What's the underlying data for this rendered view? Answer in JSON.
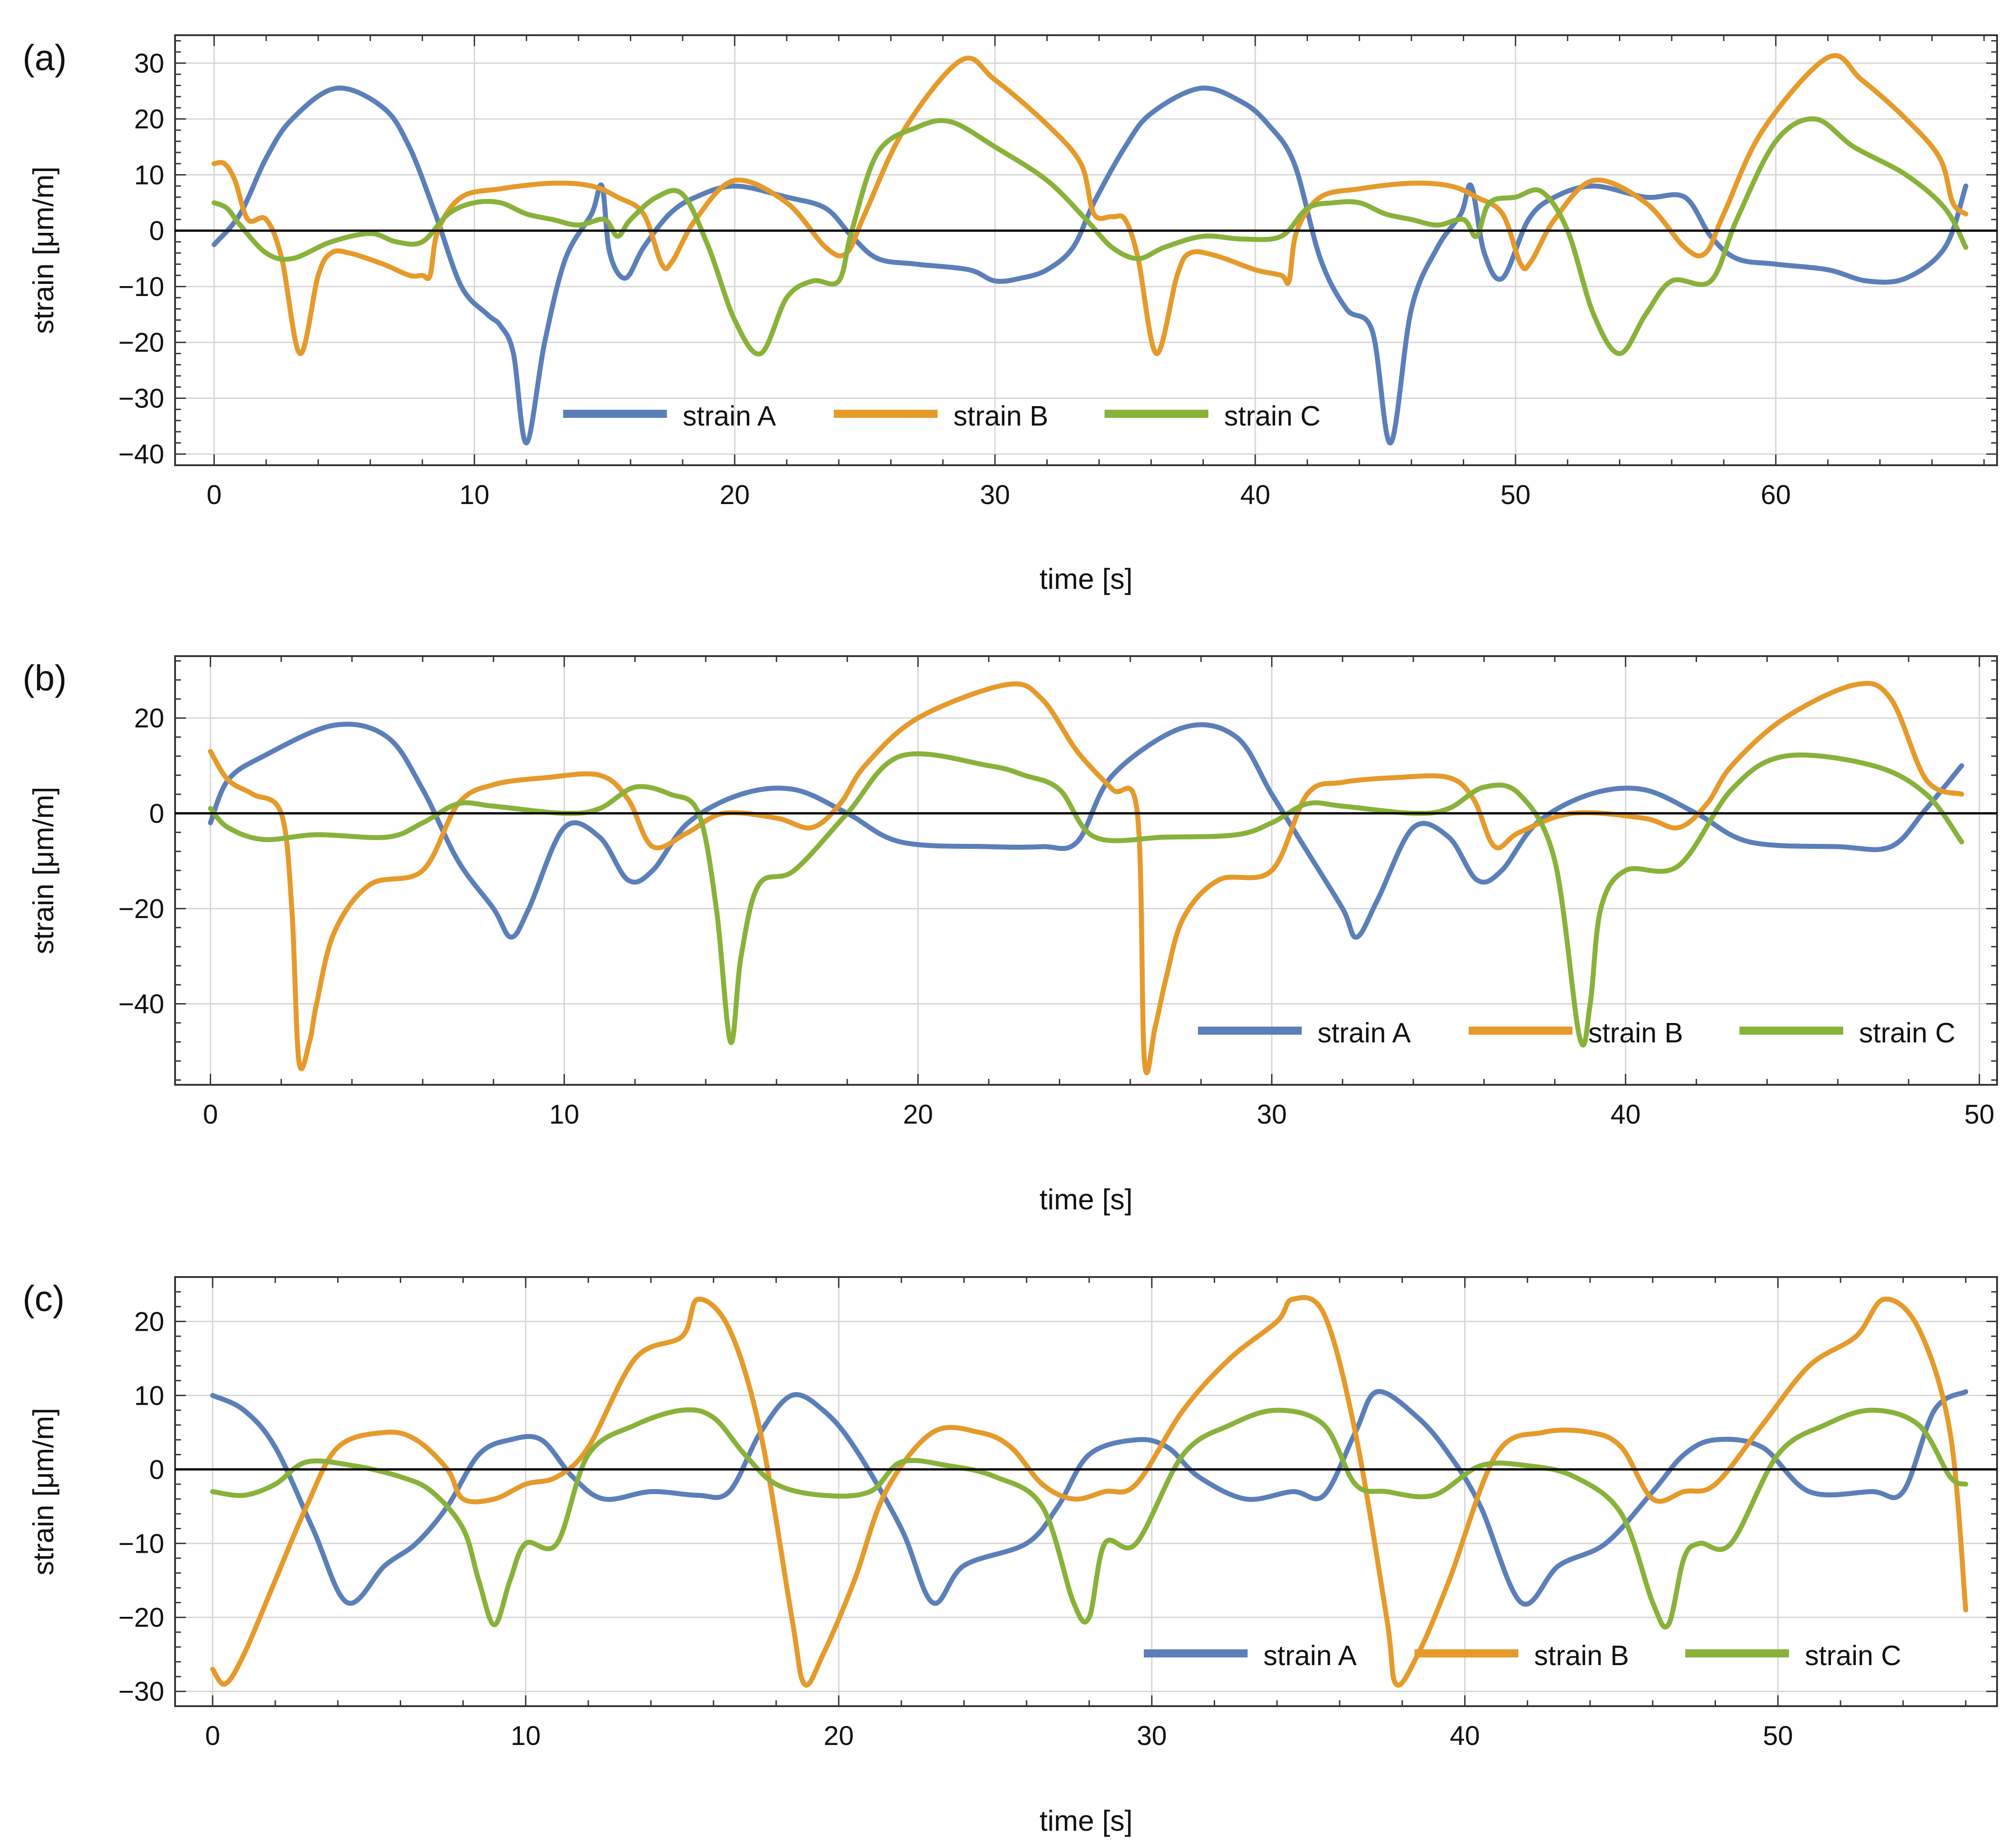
{
  "figure": {
    "series_colors": {
      "strain A": "#5b7fb9",
      "strain B": "#e59a2a",
      "strain C": "#88b23a"
    }
  },
  "chart_data": [
    {
      "panel": "(a)",
      "type": "line",
      "xlabel": "time [s]",
      "ylabel": "strain [μm/m]",
      "xlim": [
        -1.5,
        68.5
      ],
      "ylim": [
        -42,
        35
      ],
      "xticks": [
        0,
        10,
        20,
        30,
        40,
        50,
        60
      ],
      "yticks": [
        -40,
        -30,
        -20,
        -10,
        0,
        10,
        20,
        30
      ],
      "grid": true,
      "legend": [
        "strain A",
        "strain B",
        "strain C"
      ],
      "legend_position": "bottom-center",
      "series": [
        {
          "name": "strain A",
          "color": "#5b7fb9",
          "x": [
            0,
            1,
            2,
            3,
            4.7,
            6.5,
            7.5,
            8.5,
            9.5,
            10.5,
            11,
            11.5,
            12,
            12.7,
            13.5,
            14.5,
            14.9,
            15.2,
            15.8,
            16.5,
            17.5,
            18.5,
            20,
            22,
            23.5,
            24.5,
            25.5,
            27,
            29,
            30,
            31,
            32,
            33,
            33.8,
            35,
            36,
            37.9,
            39.5,
            40.5,
            41.5,
            42.5,
            43.5,
            44.5,
            45.2,
            46,
            47,
            47.9,
            48.3,
            48.8,
            49.5,
            50.5,
            51.5,
            53,
            55,
            56.5,
            57.5,
            58.5,
            60,
            62,
            63.5,
            65,
            66.5,
            67.3
          ],
          "values": [
            -2.5,
            3,
            13,
            20,
            25.5,
            22,
            15,
            3,
            -10,
            -15,
            -17,
            -22,
            -38,
            -20,
            -5,
            3,
            8,
            -4,
            -8.5,
            -3,
            3,
            6,
            8,
            6,
            4,
            -1,
            -5,
            -6,
            -7,
            -9,
            -8.5,
            -7,
            -3,
            5,
            15,
            21,
            25.5,
            23,
            19,
            12,
            -5,
            -14,
            -18,
            -38,
            -14,
            -3,
            3,
            8,
            -4,
            -8.5,
            2,
            6,
            8,
            6,
            6,
            -1,
            -5,
            -6,
            -7,
            -9,
            -8.5,
            -3,
            8
          ]
        },
        {
          "name": "strain B",
          "color": "#e59a2a",
          "x": [
            0,
            0.4,
            0.8,
            1.3,
            2,
            2.6,
            3.3,
            4,
            4.5,
            5.2,
            6.5,
            7.5,
            8,
            8.3,
            8.6,
            9.5,
            11,
            13,
            14.5,
            15.5,
            16.5,
            17.2,
            17.6,
            18.5,
            20,
            22,
            23.5,
            24.3,
            25,
            26.5,
            28.7,
            30,
            32,
            33.3,
            33.8,
            34.5,
            35,
            35.5,
            36.2,
            37,
            37.5,
            38.5,
            40,
            41,
            41.3,
            41.6,
            42.5,
            44,
            46,
            47.5,
            48.5,
            49.5,
            50.2,
            50.6,
            51.5,
            53,
            55,
            56.5,
            57.3,
            58,
            59.5,
            62,
            63.3,
            65,
            66.3,
            66.8,
            67.3
          ],
          "values": [
            12,
            12,
            9,
            2,
            2,
            -5,
            -22,
            -8,
            -4,
            -4,
            -6,
            -8,
            -8,
            -8,
            0,
            6,
            7.5,
            8.5,
            8,
            6,
            3,
            -6,
            -5.5,
            2,
            9,
            5,
            -3,
            -4,
            3,
            18,
            30.5,
            27,
            19,
            12,
            3,
            2.5,
            2,
            -5,
            -22,
            -8,
            -4,
            -4.5,
            -7,
            -8,
            -9,
            0,
            6,
            7.5,
            8.5,
            8,
            6,
            3,
            -6,
            -5.5,
            2,
            9,
            5,
            -3,
            -4,
            3,
            18,
            31,
            27,
            20,
            13,
            5,
            3
          ]
        },
        {
          "name": "strain C",
          "color": "#88b23a",
          "x": [
            0,
            0.5,
            1,
            2,
            3,
            4.5,
            6,
            7,
            8,
            9,
            10,
            11,
            12,
            13,
            14,
            15,
            15.5,
            16,
            17,
            18,
            19,
            20,
            21,
            22,
            23,
            24,
            24.5,
            25.5,
            27,
            28.3,
            30,
            32,
            33.5,
            34.5,
            35.5,
            36.5,
            38,
            39.5,
            41,
            42,
            43,
            44,
            45,
            46,
            47,
            48,
            48.5,
            49,
            50,
            51,
            52,
            53,
            54,
            55,
            56,
            57.5,
            58.5,
            60,
            61.5,
            63,
            65,
            66.5,
            67.3
          ],
          "values": [
            5,
            4,
            1,
            -4,
            -5,
            -2,
            -0.5,
            -2,
            -2,
            3,
            5,
            5,
            3,
            2,
            1,
            2,
            -1,
            2,
            6,
            6.5,
            -3,
            -16,
            -22,
            -12,
            -9,
            -9,
            0,
            14,
            18.5,
            19.5,
            15,
            9,
            2,
            -3,
            -5,
            -3,
            -1,
            -1.5,
            -1,
            4,
            5,
            5,
            3,
            2,
            1,
            2,
            -1,
            5,
            6,
            7,
            0,
            -15,
            -22,
            -15,
            -9,
            -9,
            2,
            16,
            20,
            15,
            10,
            4,
            -3
          ]
        }
      ]
    },
    {
      "panel": "(b)",
      "type": "line",
      "xlabel": "time [s]",
      "ylabel": "strain [μm/m]",
      "xlim": [
        -1,
        50.5
      ],
      "ylim": [
        -57,
        33
      ],
      "xticks": [
        0,
        10,
        20,
        30,
        40,
        50
      ],
      "yticks": [
        -40,
        -20,
        0,
        20
      ],
      "grid": true,
      "legend": [
        "strain A",
        "strain B",
        "strain C"
      ],
      "legend_position": "bottom-right",
      "series": [
        {
          "name": "strain A",
          "color": "#5b7fb9",
          "x": [
            0,
            0.5,
            1.5,
            3.5,
            5,
            6,
            7,
            8,
            8.5,
            9,
            10,
            11,
            11.8,
            12.5,
            13.5,
            15,
            16.5,
            18,
            19.5,
            22,
            23.5,
            24.5,
            25.5,
            27.5,
            29,
            30,
            31,
            32,
            32.4,
            33,
            34,
            35,
            35.8,
            36.5,
            37.5,
            39,
            40.5,
            42,
            43.5,
            46,
            47.5,
            48.5,
            49.5
          ],
          "values": [
            -2,
            7,
            12,
            18.5,
            16,
            5,
            -10,
            -20,
            -26,
            -20,
            -3,
            -5,
            -14,
            -12,
            -2,
            4,
            5,
            0,
            -6,
            -7,
            -7,
            -6,
            8,
            18,
            16,
            4,
            -8,
            -20,
            -26,
            -18,
            -3,
            -5,
            -14,
            -12,
            -2,
            4,
            5,
            0,
            -6,
            -7,
            -7,
            1,
            10
          ]
        },
        {
          "name": "strain B",
          "color": "#e59a2a",
          "x": [
            0,
            0.5,
            1.2,
            2,
            2.3,
            2.5,
            2.8,
            3,
            3.5,
            4.5,
            6,
            7,
            8,
            9.5,
            11,
            11.8,
            12.5,
            13.5,
            14.5,
            16,
            17,
            17.8,
            18.5,
            20,
            22.5,
            23.5,
            24.5,
            25.5,
            26.2,
            26.4,
            26.7,
            27,
            27.5,
            28.5,
            30,
            31,
            32,
            33.5,
            35,
            35.7,
            36.3,
            37,
            38.5,
            40.5,
            41.5,
            42.3,
            43,
            44.5,
            46.5,
            47.5,
            48.5,
            49.5
          ],
          "values": [
            13,
            7,
            4,
            0,
            -20,
            -52,
            -48,
            -40,
            -25,
            -15,
            -12,
            2,
            6,
            7.5,
            8,
            3,
            -7,
            -4,
            0,
            -1,
            -3,
            2,
            10,
            20,
            27,
            24,
            13,
            5,
            0,
            -52,
            -45,
            -35,
            -22,
            -14,
            -12,
            4,
            6.5,
            7.5,
            7.5,
            3,
            -7,
            -4,
            0,
            -1,
            -3,
            2,
            10,
            20,
            27,
            24,
            7,
            4
          ]
        },
        {
          "name": "strain C",
          "color": "#88b23a",
          "x": [
            0,
            0.5,
            1.5,
            3,
            5,
            6,
            7,
            8,
            10,
            11,
            12,
            13,
            13.8,
            14.3,
            14.7,
            15,
            15.5,
            16.5,
            18,
            19.5,
            22,
            23,
            24,
            25,
            27,
            29,
            30,
            31,
            32,
            34,
            35,
            36,
            37,
            38,
            38.7,
            39,
            39.3,
            40,
            41.5,
            43,
            44.5,
            47,
            48.5,
            49.5
          ],
          "values": [
            1,
            -3,
            -5.5,
            -4.5,
            -5,
            -2,
            2,
            1.5,
            0,
            1,
            5.5,
            4,
            0,
            -20,
            -48,
            -30,
            -15,
            -12,
            0,
            12,
            10,
            8,
            5,
            -5,
            -5,
            -4.5,
            -2,
            2,
            1.5,
            0,
            1,
            5.5,
            4,
            -10,
            -47,
            -40,
            -20,
            -12,
            -11,
            5,
            12,
            10,
            4,
            -6
          ]
        }
      ]
    },
    {
      "panel": "(c)",
      "type": "line",
      "xlabel": "time [s]",
      "ylabel": "strain [μm/m]",
      "xlim": [
        -1.2,
        57
      ],
      "ylim": [
        -32,
        26
      ],
      "xticks": [
        0,
        10,
        20,
        30,
        40,
        50
      ],
      "yticks": [
        -30,
        -20,
        -10,
        0,
        10,
        20
      ],
      "grid": true,
      "legend": [
        "strain A",
        "strain B",
        "strain C"
      ],
      "legend_position": "bottom-right",
      "series": [
        {
          "name": "strain A",
          "color": "#5b7fb9",
          "x": [
            0,
            1,
            2,
            3.2,
            4.3,
            5.5,
            6.5,
            7.5,
            8.5,
            9.5,
            10.5,
            11.5,
            12.5,
            14,
            15.5,
            16.5,
            17.5,
            18.5,
            19.5,
            20.5,
            22,
            23,
            24,
            26,
            27,
            28,
            29.5,
            30.5,
            31.5,
            33,
            34.5,
            35.5,
            36.5,
            37.2,
            38.5,
            39.5,
            40.5,
            41.8,
            43,
            44.5,
            46,
            47,
            48,
            49.5,
            51,
            53,
            54,
            55,
            56
          ],
          "values": [
            10,
            8,
            3,
            -8,
            -18,
            -13,
            -10,
            -5,
            2,
            4,
            4,
            -1,
            -4,
            -3,
            -3.5,
            -3,
            5,
            10,
            8,
            3,
            -8,
            -18,
            -13,
            -10,
            -5,
            2,
            4,
            3,
            -1,
            -4,
            -3,
            -3.5,
            5,
            10.5,
            7,
            2,
            -5,
            -18,
            -13,
            -10,
            -3,
            2,
            4,
            3,
            -3,
            -3,
            -3,
            8,
            10.5
          ]
        },
        {
          "name": "strain B",
          "color": "#e59a2a",
          "x": [
            0,
            0.4,
            1,
            2,
            3,
            4,
            5.5,
            6.5,
            7.5,
            8,
            9,
            10,
            11,
            12,
            13.5,
            15,
            15.5,
            16.5,
            17.5,
            18.5,
            18.9,
            19.5,
            20.5,
            21.5,
            23,
            24.5,
            25.5,
            26.5,
            27.5,
            28.5,
            29.5,
            31,
            32.5,
            34,
            34.5,
            35.5,
            36.5,
            37.5,
            37.8,
            38.5,
            39.5,
            41,
            42.5,
            44,
            45,
            46,
            47,
            48,
            49.5,
            51,
            52.5,
            53.4,
            54.5,
            55.5,
            56
          ],
          "values": [
            -27,
            -29,
            -25,
            -15,
            -5,
            3,
            5,
            4,
            0,
            -4,
            -4,
            -2,
            -1,
            3,
            15,
            18,
            23,
            19,
            5,
            -20,
            -29,
            -25,
            -15,
            -3,
            5,
            5,
            3,
            -2,
            -4,
            -3,
            -2,
            8,
            15,
            20,
            23,
            21,
            5,
            -20,
            -29,
            -25,
            -15,
            2,
            5,
            5,
            3,
            -4,
            -3,
            -2,
            6,
            14,
            18,
            23,
            19,
            5,
            -19
          ]
        },
        {
          "name": "strain C",
          "color": "#88b23a",
          "x": [
            0,
            1,
            2,
            3,
            4.5,
            6,
            7,
            8,
            8.5,
            9,
            9.5,
            10,
            11,
            12,
            13.5,
            15,
            16,
            17,
            18,
            19.5,
            21,
            22,
            23.5,
            25,
            26.5,
            27.5,
            28,
            28.5,
            29.5,
            31,
            32.5,
            34,
            35.5,
            36.5,
            37.5,
            39,
            40.5,
            42,
            43.5,
            45,
            46,
            46.5,
            47,
            47.5,
            48.5,
            50,
            51.5,
            53,
            54.5,
            55.5,
            56
          ],
          "values": [
            -3,
            -3.5,
            -2,
            1,
            0.5,
            -1,
            -3,
            -8,
            -15,
            -21,
            -15,
            -10,
            -10,
            2,
            6,
            8,
            7,
            2,
            -2,
            -3.5,
            -3,
            1,
            0.5,
            -1,
            -5,
            -18,
            -20,
            -10,
            -10,
            2,
            6,
            8,
            6,
            -2,
            -3,
            -3.5,
            0.5,
            0.5,
            -1,
            -6,
            -18,
            -21,
            -12,
            -10,
            -10,
            2,
            6,
            8,
            6,
            -1,
            -2
          ]
        }
      ]
    }
  ]
}
